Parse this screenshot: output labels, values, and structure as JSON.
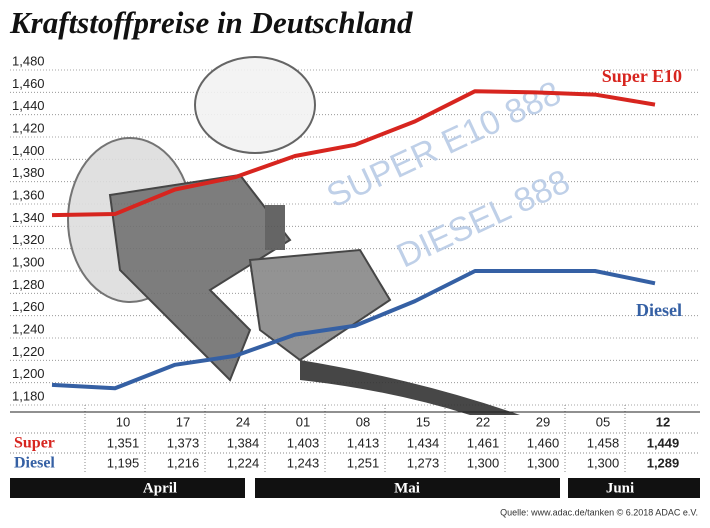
{
  "chart_data": {
    "type": "line",
    "title": "Kraftstoffpreise in Deutschland",
    "categories": [
      null,
      "10",
      "17",
      "24",
      "01",
      "08",
      "15",
      "22",
      "29",
      "05",
      "12"
    ],
    "series": [
      {
        "name": "Super E10",
        "row_label": "Super",
        "color": "#d7251f",
        "values": [
          1350,
          1351,
          1373,
          1384,
          1403,
          1413,
          1434,
          1461,
          1460,
          1458,
          1449
        ],
        "value_labels": [
          null,
          "1,351",
          "1,373",
          "1,384",
          "1,403",
          "1,413",
          "1,434",
          "1,461",
          "1,460",
          "1,458",
          "1,449"
        ]
      },
      {
        "name": "Diesel",
        "row_label": "Diesel",
        "color": "#3560a4",
        "values": [
          1198,
          1195,
          1216,
          1224,
          1243,
          1251,
          1273,
          1300,
          1300,
          1300,
          1289
        ],
        "value_labels": [
          null,
          "1,195",
          "1,216",
          "1,224",
          "1,243",
          "1,251",
          "1,273",
          "1,300",
          "1,300",
          "1,300",
          "1,289"
        ]
      }
    ],
    "ylim": [
      1180,
      1480
    ],
    "yticks": [
      {
        "value": 1180,
        "label": "1,180"
      },
      {
        "value": 1200,
        "label": "1,200"
      },
      {
        "value": 1220,
        "label": "1,220"
      },
      {
        "value": 1240,
        "label": "1,240"
      },
      {
        "value": 1260,
        "label": "1,260"
      },
      {
        "value": 1280,
        "label": "1,280"
      },
      {
        "value": 1300,
        "label": "1,300"
      },
      {
        "value": 1320,
        "label": "1,320"
      },
      {
        "value": 1340,
        "label": "1,340"
      },
      {
        "value": 1360,
        "label": "1,360"
      },
      {
        "value": 1380,
        "label": "1,380"
      },
      {
        "value": 1400,
        "label": "1,400"
      },
      {
        "value": 1420,
        "label": "1,420"
      },
      {
        "value": 1440,
        "label": "1,440"
      },
      {
        "value": 1460,
        "label": "1,460"
      },
      {
        "value": 1480,
        "label": "1,480"
      }
    ],
    "grid": true,
    "months": [
      "April",
      "Mai",
      "Juni"
    ],
    "source": "Quelle: www.adac.de/tanken  © 6.2018  ADAC e.V."
  }
}
